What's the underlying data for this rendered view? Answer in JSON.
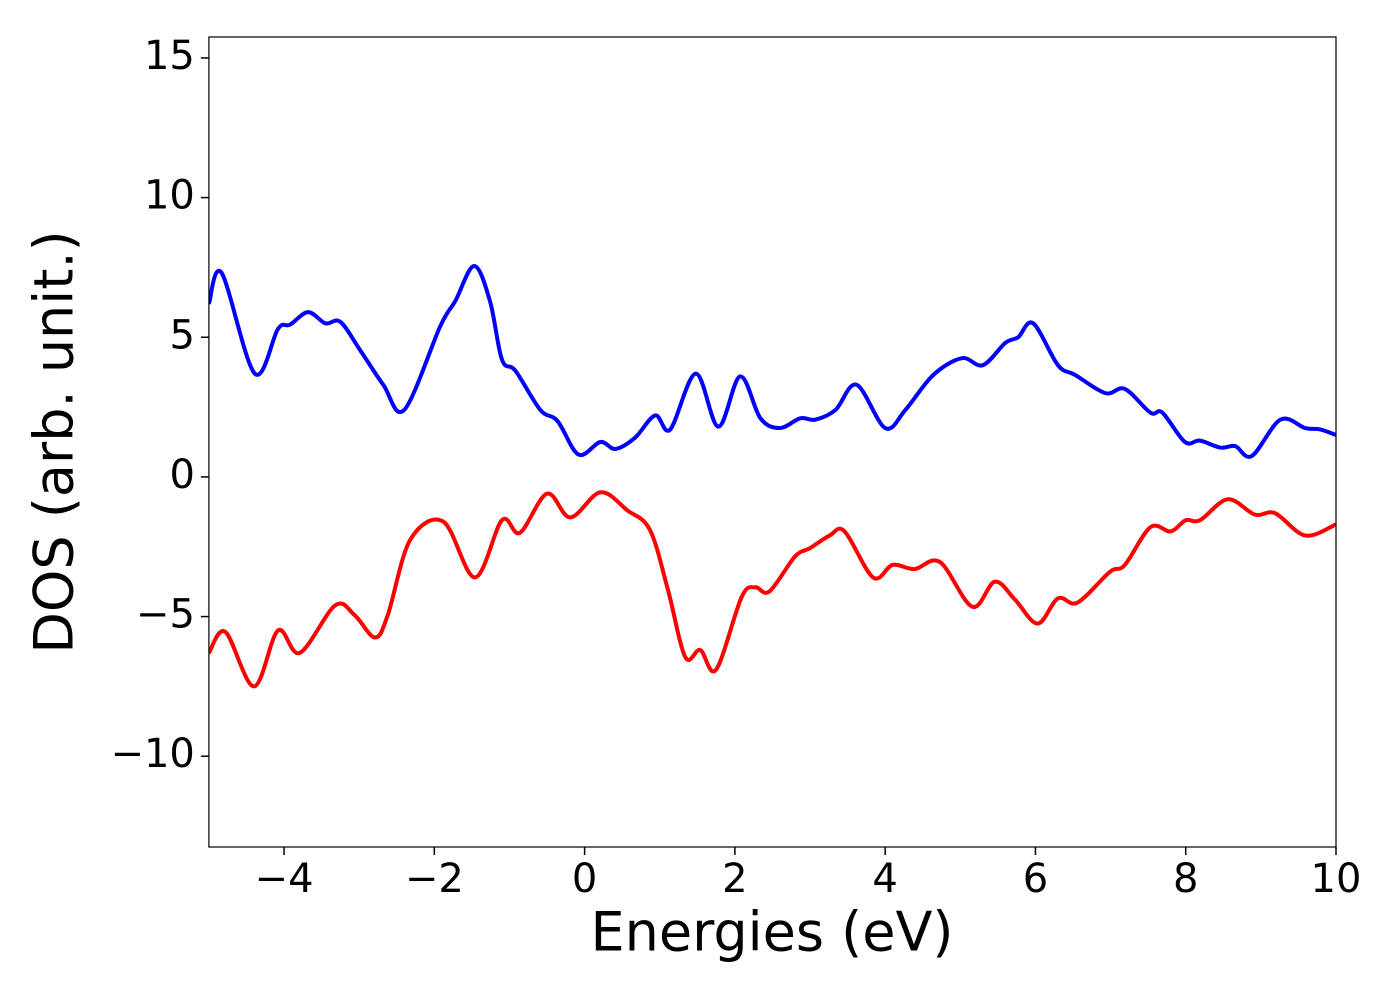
{
  "chart_data": {
    "type": "line",
    "xlabel": "Energies (eV)",
    "ylabel": "DOS (arb. unit.)",
    "xlim": [
      -5,
      10
    ],
    "ylim": [
      -13.25,
      15.75
    ],
    "xticks": [
      {
        "value": -4,
        "label": "−4"
      },
      {
        "value": -2,
        "label": "−2"
      },
      0,
      2,
      4,
      6,
      8,
      10
    ],
    "yticks": [
      {
        "value": -10,
        "label": "−10"
      },
      {
        "value": -5,
        "label": "−5"
      },
      0,
      5,
      10,
      15
    ],
    "series": [
      {
        "color": "#0000ff",
        "x": [
          -5,
          -4.83,
          -4.39,
          -4.08,
          -3.92,
          -3.68,
          -3.45,
          -3.25,
          -2.99,
          -2.68,
          -2.4,
          -1.92,
          -1.72,
          -1.47,
          -1.26,
          -1.1,
          -0.92,
          -0.59,
          -0.36,
          -0.08,
          0.21,
          0.41,
          0.67,
          0.94,
          1.14,
          1.48,
          1.78,
          2.07,
          2.34,
          2.6,
          2.87,
          3.07,
          3.34,
          3.62,
          4.0,
          4.27,
          4.64,
          5.02,
          5.3,
          5.6,
          5.77,
          5.97,
          6.3,
          6.53,
          6.93,
          7.19,
          7.53,
          7.69,
          7.99,
          8.19,
          8.46,
          8.66,
          8.88,
          9.26,
          9.59,
          9.79,
          10
        ],
        "values": [
          6.2,
          7.3,
          3.7,
          5.3,
          5.45,
          5.9,
          5.5,
          5.55,
          4.55,
          3.3,
          2.4,
          5.4,
          6.3,
          7.55,
          6.3,
          4.2,
          3.8,
          2.4,
          2.0,
          0.8,
          1.25,
          1.0,
          1.4,
          2.2,
          1.7,
          3.7,
          1.8,
          3.6,
          2.1,
          1.75,
          2.1,
          2.05,
          2.4,
          3.3,
          1.75,
          2.4,
          3.65,
          4.25,
          4.0,
          4.8,
          5.0,
          5.5,
          4.0,
          3.65,
          3.0,
          3.15,
          2.3,
          2.3,
          1.25,
          1.3,
          1.05,
          1.1,
          0.75,
          2.05,
          1.75,
          1.7,
          1.5
        ]
      },
      {
        "color": "#ff0000",
        "x": [
          -5,
          -4.78,
          -4.4,
          -4.08,
          -3.79,
          -3.32,
          -3.06,
          -2.79,
          -2.62,
          -2.32,
          -1.88,
          -1.46,
          -1.1,
          -0.86,
          -0.5,
          -0.19,
          0.21,
          0.57,
          0.87,
          1.11,
          1.34,
          1.54,
          1.75,
          2.09,
          2.27,
          2.46,
          2.8,
          3.0,
          3.26,
          3.46,
          3.84,
          4.1,
          4.39,
          4.73,
          5.16,
          5.46,
          5.73,
          6.03,
          6.3,
          6.56,
          6.99,
          7.19,
          7.53,
          7.8,
          8.0,
          8.19,
          8.56,
          8.92,
          9.19,
          9.59,
          10
        ],
        "values": [
          -6.3,
          -5.55,
          -7.5,
          -5.5,
          -6.3,
          -4.6,
          -4.95,
          -5.75,
          -4.95,
          -2.25,
          -1.6,
          -3.6,
          -1.55,
          -2.0,
          -0.6,
          -1.45,
          -0.55,
          -1.2,
          -1.9,
          -4.05,
          -6.45,
          -6.2,
          -6.9,
          -4.3,
          -3.95,
          -4.1,
          -2.85,
          -2.55,
          -2.1,
          -1.95,
          -3.6,
          -3.15,
          -3.3,
          -3.05,
          -4.65,
          -3.75,
          -4.4,
          -5.25,
          -4.35,
          -4.5,
          -3.4,
          -3.15,
          -1.8,
          -1.95,
          -1.55,
          -1.55,
          -0.8,
          -1.35,
          -1.3,
          -2.1,
          -1.7
        ]
      }
    ]
  }
}
